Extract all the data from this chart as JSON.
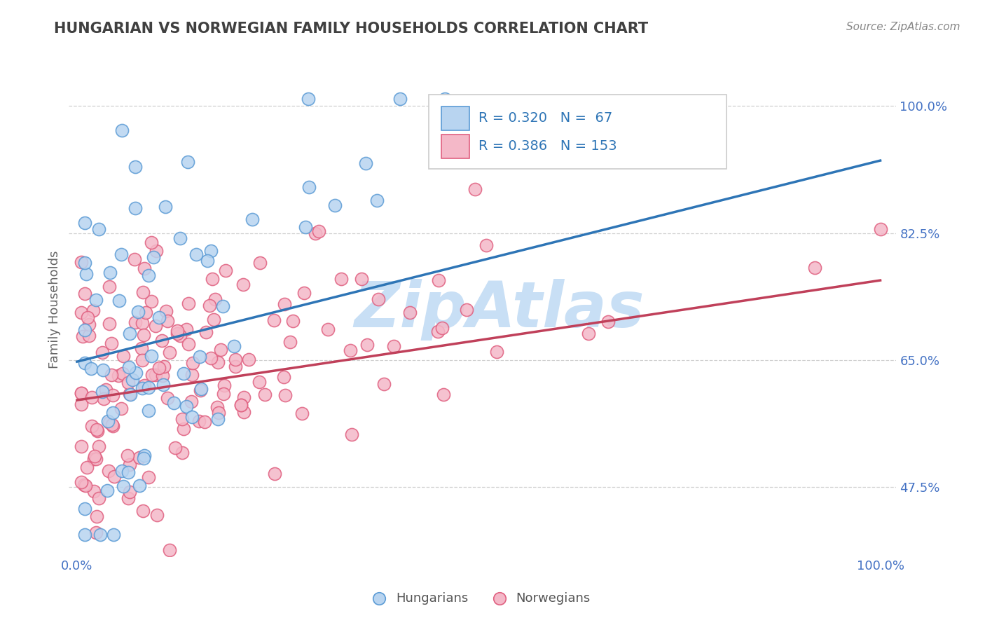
{
  "title": "HUNGARIAN VS NORWEGIAN FAMILY HOUSEHOLDS CORRELATION CHART",
  "source": "Source: ZipAtlas.com",
  "ylabel": "Family Households",
  "R_hungarian": 0.32,
  "N_hungarian": 67,
  "R_norwegian": 0.386,
  "N_norwegian": 153,
  "blue_scatter_face": "#b8d4f0",
  "blue_scatter_edge": "#5b9bd5",
  "blue_line_color": "#2e75b6",
  "pink_scatter_face": "#f4b8c8",
  "pink_scatter_edge": "#e06080",
  "pink_line_color": "#c0405a",
  "legend_text_color": "#2e75b6",
  "axis_color": "#4472c4",
  "title_color": "#404040",
  "watermark_color": "#c8dff5",
  "grid_color": "#d0d0d0",
  "background_color": "#ffffff",
  "blue_line_y0": 0.648,
  "blue_line_y1": 0.925,
  "pink_line_y0": 0.595,
  "pink_line_y1": 0.76,
  "ylim_low": 0.38,
  "ylim_high": 1.06,
  "xlim_low": -0.01,
  "xlim_high": 1.02,
  "ytick_positions": [
    0.475,
    0.65,
    0.825,
    1.0
  ],
  "ytick_labels": [
    "47.5%",
    "65.0%",
    "82.5%",
    "100.0%"
  ],
  "xtick_positions": [
    0.0,
    0.25,
    0.5,
    0.75,
    1.0
  ],
  "xtick_labels": [
    "0.0%",
    "",
    "",
    "",
    "100.0%"
  ]
}
